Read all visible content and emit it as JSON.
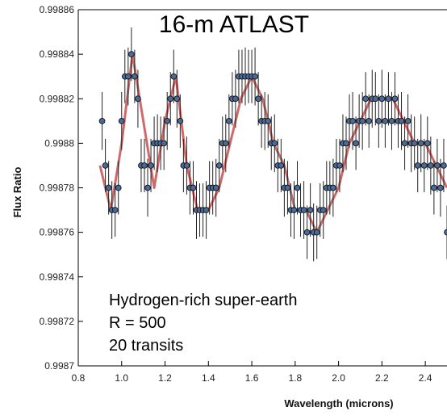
{
  "chart_data": {
    "type": "scatter",
    "title": "16-m ATLAST",
    "xlabel": "Wavelength (microns)",
    "ylabel": "Flux Ratio",
    "xlim": [
      0.8,
      2.5
    ],
    "ylim": [
      0.9987,
      0.99886
    ],
    "xticks": [
      0.8,
      1.0,
      1.2,
      1.4,
      1.6,
      1.8,
      2.0,
      2.2,
      2.4
    ],
    "xtick_labels": [
      "0.8",
      "1.0",
      "1.2",
      "1.4",
      "1.6",
      "1.8",
      "2.0",
      "2.2",
      "2.4"
    ],
    "yticks": [
      0.9987,
      0.99872,
      0.99874,
      0.99876,
      0.99878,
      0.9988,
      0.99882,
      0.99884,
      0.99886
    ],
    "ytick_labels": [
      "0.9987",
      "0.99872",
      "0.99874",
      "0.99876",
      "0.99878",
      "0.9988",
      "0.99882",
      "0.99884",
      "0.99886"
    ],
    "annotations": [
      "Hydrogen-rich super-earth",
      "R = 500",
      "20 transits"
    ],
    "model_curve": {
      "color": "#d06a6a",
      "x": [
        0.9,
        0.95,
        1.0,
        1.05,
        1.1,
        1.15,
        1.2,
        1.25,
        1.3,
        1.35,
        1.4,
        1.45,
        1.5,
        1.55,
        1.6,
        1.65,
        1.7,
        1.75,
        1.8,
        1.85,
        1.9,
        1.95,
        2.0,
        2.05,
        2.1,
        2.15,
        2.2,
        2.25,
        2.3,
        2.35,
        2.4,
        2.45,
        2.5
      ],
      "y": [
        0.99879,
        0.99877,
        0.9988,
        0.99884,
        0.99881,
        0.99878,
        0.99881,
        0.99883,
        0.99879,
        0.99877,
        0.99877,
        0.99878,
        0.9988,
        0.99882,
        0.99883,
        0.99882,
        0.9988,
        0.99879,
        0.99877,
        0.99877,
        0.99876,
        0.99877,
        0.99878,
        0.9988,
        0.99881,
        0.99882,
        0.99882,
        0.99882,
        0.99881,
        0.9988,
        0.9988,
        0.99879,
        0.99878
      ]
    },
    "series": [
      {
        "marker_color": "#4a6a9a",
        "errorbar_color": "#222222",
        "x": [
          0.91,
          0.925,
          0.94,
          0.955,
          0.97,
          0.985,
          1.0,
          1.015,
          1.03,
          1.045,
          1.06,
          1.075,
          1.09,
          1.105,
          1.12,
          1.135,
          1.15,
          1.165,
          1.18,
          1.195,
          1.21,
          1.225,
          1.24,
          1.255,
          1.27,
          1.285,
          1.3,
          1.315,
          1.33,
          1.345,
          1.36,
          1.375,
          1.39,
          1.405,
          1.42,
          1.435,
          1.45,
          1.465,
          1.48,
          1.495,
          1.51,
          1.525,
          1.54,
          1.555,
          1.57,
          1.585,
          1.6,
          1.615,
          1.63,
          1.645,
          1.66,
          1.675,
          1.69,
          1.705,
          1.72,
          1.735,
          1.75,
          1.765,
          1.78,
          1.795,
          1.81,
          1.825,
          1.84,
          1.855,
          1.87,
          1.885,
          1.9,
          1.915,
          1.93,
          1.945,
          1.96,
          1.975,
          1.99,
          2.005,
          2.02,
          2.035,
          2.05,
          2.065,
          2.08,
          2.095,
          2.11,
          2.125,
          2.14,
          2.155,
          2.17,
          2.185,
          2.2,
          2.215,
          2.23,
          2.245,
          2.26,
          2.275,
          2.29,
          2.305,
          2.32,
          2.335,
          2.35,
          2.365,
          2.38,
          2.395,
          2.41,
          2.425,
          2.44,
          2.455,
          2.47,
          2.485,
          2.5
        ],
        "y": [
          0.99881,
          0.99879,
          0.99878,
          0.99877,
          0.99877,
          0.99878,
          0.99881,
          0.99883,
          0.99883,
          0.99884,
          0.99883,
          0.99882,
          0.99879,
          0.99879,
          0.99878,
          0.99879,
          0.9988,
          0.9988,
          0.9988,
          0.9988,
          0.99881,
          0.99882,
          0.99883,
          0.99882,
          0.99881,
          0.99879,
          0.99879,
          0.99878,
          0.99878,
          0.99877,
          0.99877,
          0.99877,
          0.99877,
          0.99878,
          0.99878,
          0.99878,
          0.99879,
          0.9988,
          0.9988,
          0.99881,
          0.99882,
          0.99882,
          0.99883,
          0.99883,
          0.99883,
          0.99883,
          0.99883,
          0.99883,
          0.99882,
          0.99881,
          0.99881,
          0.99881,
          0.9988,
          0.9988,
          0.99879,
          0.99879,
          0.99878,
          0.99878,
          0.99877,
          0.99877,
          0.99878,
          0.99877,
          0.99877,
          0.99876,
          0.99877,
          0.99876,
          0.99876,
          0.99877,
          0.99877,
          0.99878,
          0.99878,
          0.99878,
          0.99879,
          0.99879,
          0.9988,
          0.9988,
          0.99881,
          0.99881,
          0.9988,
          0.99881,
          0.99881,
          0.99882,
          0.99881,
          0.99882,
          0.99882,
          0.99881,
          0.99882,
          0.99881,
          0.99882,
          0.99881,
          0.99882,
          0.99881,
          0.99881,
          0.9988,
          0.99881,
          0.9988,
          0.9988,
          0.99879,
          0.9988,
          0.99879,
          0.9988,
          0.99879,
          0.99878,
          0.99879,
          0.99878,
          0.99879,
          0.99876
        ],
        "err": [
          1.3e-05,
          1.2e-05,
          1.2e-05,
          1.3e-05,
          1.2e-05,
          1.2e-05,
          1.3e-05,
          1.2e-05,
          1.3e-05,
          1.2e-05,
          1.2e-05,
          1.3e-05,
          1.2e-05,
          1.2e-05,
          1.3e-05,
          1.2e-05,
          1.2e-05,
          1.3e-05,
          1.2e-05,
          1.2e-05,
          1.3e-05,
          1.2e-05,
          1.2e-05,
          1.3e-05,
          1.2e-05,
          1.2e-05,
          1.3e-05,
          1.2e-05,
          1.2e-05,
          1.3e-05,
          1.2e-05,
          1.2e-05,
          1.3e-05,
          1.2e-05,
          1.2e-05,
          1.3e-05,
          1.2e-05,
          1.2e-05,
          1.3e-05,
          1.2e-05,
          1.2e-05,
          1.3e-05,
          1.2e-05,
          1.2e-05,
          1.3e-05,
          1.2e-05,
          1.2e-05,
          1.3e-05,
          1.2e-05,
          1.2e-05,
          1.3e-05,
          1.2e-05,
          1.2e-05,
          1.3e-05,
          1.2e-05,
          1.2e-05,
          1.3e-05,
          1.2e-05,
          1.2e-05,
          1.3e-05,
          1.2e-05,
          1.2e-05,
          1.3e-05,
          1.2e-05,
          1.2e-05,
          1.3e-05,
          1.2e-05,
          1.2e-05,
          1.3e-05,
          1.2e-05,
          1.2e-05,
          1.3e-05,
          1.2e-05,
          1.2e-05,
          1.3e-05,
          1.2e-05,
          1.2e-05,
          1.3e-05,
          1.2e-05,
          1.2e-05,
          1.3e-05,
          1.2e-05,
          1.2e-05,
          1.3e-05,
          1.2e-05,
          1.2e-05,
          1.3e-05,
          1.2e-05,
          1.2e-05,
          1.3e-05,
          1.2e-05,
          1.2e-05,
          1.3e-05,
          1.2e-05,
          1.2e-05,
          1.3e-05,
          1.2e-05,
          1.2e-05,
          1.3e-05,
          1.2e-05,
          1.2e-05,
          1.3e-05,
          1.2e-05,
          1.2e-05,
          1.3e-05,
          1.2e-05,
          1.2e-05
        ]
      }
    ],
    "grid": false,
    "legend": "none"
  }
}
